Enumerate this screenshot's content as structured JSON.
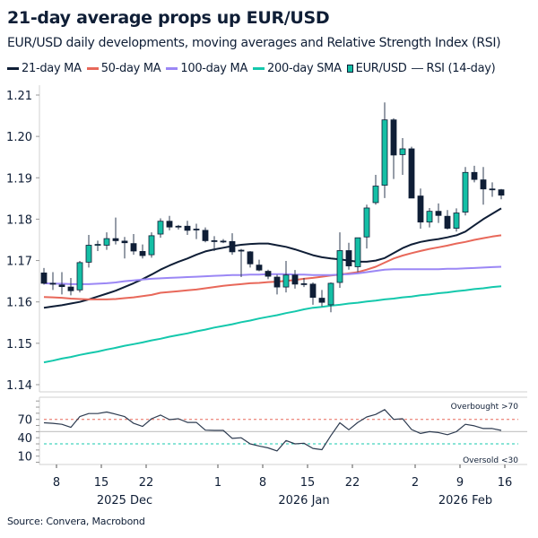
{
  "title": "21-day average props up EUR/USD",
  "subtitle": "EUR/USD daily developments, moving averages and Relative Strength Index (RSI)",
  "source": "Source: Convera, Macrobond",
  "legend": [
    {
      "label": "21-day MA",
      "color": "#0f1e36",
      "kind": "line"
    },
    {
      "label": "50-day MA",
      "color": "#e8685a",
      "kind": "line"
    },
    {
      "label": "100-day MA",
      "color": "#9b87f5",
      "kind": "line"
    },
    {
      "label": "200-day SMA",
      "color": "#14c8ac",
      "kind": "line"
    },
    {
      "label": "EUR/USD",
      "color": "#14bfa5",
      "kind": "candle"
    },
    {
      "label": "RSI (14-day)",
      "color": "#2d3b50",
      "kind": "thin-line"
    }
  ],
  "chart_data": [
    {
      "type": "candlestick",
      "x": [
        "2025-12-05",
        "2025-12-08",
        "2025-12-09",
        "2025-12-10",
        "2025-12-11",
        "2025-12-12",
        "2025-12-15",
        "2025-12-16",
        "2025-12-17",
        "2025-12-18",
        "2025-12-19",
        "2025-12-22",
        "2025-12-23",
        "2025-12-24",
        "2025-12-25",
        "2025-12-26",
        "2025-12-29",
        "2025-12-30",
        "2025-12-31",
        "2026-01-01",
        "2026-01-02",
        "2026-01-05",
        "2026-01-06",
        "2026-01-07",
        "2026-01-08",
        "2026-01-09",
        "2026-01-12",
        "2026-01-13",
        "2026-01-14",
        "2026-01-15",
        "2026-01-16",
        "2026-01-19",
        "2026-01-20",
        "2026-01-21",
        "2026-01-22",
        "2026-01-23",
        "2026-01-26",
        "2026-01-27",
        "2026-01-28",
        "2026-01-29",
        "2026-01-30",
        "2026-02-02",
        "2026-02-03",
        "2026-02-04",
        "2026-02-05",
        "2026-02-06",
        "2026-02-09",
        "2026-02-10",
        "2026-02-11",
        "2026-02-12",
        "2026-02-13",
        "2026-02-16"
      ],
      "ylim": [
        1.138,
        1.213
      ],
      "yticks": [
        "1.14",
        "1.15",
        "1.16",
        "1.17",
        "1.18",
        "1.19",
        "1.20",
        "1.21"
      ],
      "up_color": "#14bfa5",
      "down_color": "#0f1e36",
      "open": [
        1.167,
        1.1645,
        1.1641,
        1.1636,
        1.1629,
        1.1696,
        1.1738,
        1.1737,
        1.1753,
        1.1747,
        1.1741,
        1.1722,
        1.1714,
        1.1764,
        1.1795,
        1.1783,
        1.1783,
        1.1776,
        1.1773,
        1.1748,
        1.1747,
        1.1746,
        1.1725,
        1.1721,
        1.1689,
        1.1674,
        1.166,
        1.1636,
        1.1665,
        1.1644,
        1.1643,
        1.1609,
        1.1593,
        1.1647,
        1.1724,
        1.1685,
        1.1757,
        1.184,
        1.1882,
        1.204,
        1.1956,
        1.197,
        1.1856,
        1.1793,
        1.1819,
        1.1807,
        1.1778,
        1.1817,
        1.1913,
        1.1895,
        1.1873,
        1.1871
      ],
      "high": [
        1.1682,
        1.1672,
        1.1672,
        1.1658,
        1.1699,
        1.1762,
        1.1748,
        1.1768,
        1.1804,
        1.1757,
        1.1764,
        1.1739,
        1.1768,
        1.1802,
        1.1808,
        1.1786,
        1.1796,
        1.1789,
        1.178,
        1.1759,
        1.1752,
        1.1766,
        1.1728,
        1.1723,
        1.1702,
        1.1678,
        1.1666,
        1.1699,
        1.1677,
        1.1658,
        1.1647,
        1.1629,
        1.1647,
        1.1768,
        1.1743,
        1.1755,
        1.1835,
        1.1907,
        1.2082,
        1.2044,
        1.1996,
        1.1975,
        1.1874,
        1.1827,
        1.1838,
        1.1822,
        1.1826,
        1.1926,
        1.1929,
        1.1926,
        1.1889,
        1.1873
      ],
      "low": [
        1.1642,
        1.1629,
        1.1618,
        1.1616,
        1.1623,
        1.1683,
        1.1723,
        1.1726,
        1.1739,
        1.1705,
        1.1714,
        1.1705,
        1.1707,
        1.1755,
        1.1773,
        1.1775,
        1.1762,
        1.1752,
        1.1744,
        1.1723,
        1.1742,
        1.1714,
        1.166,
        1.1683,
        1.1674,
        1.1655,
        1.1618,
        1.1623,
        1.1632,
        1.1636,
        1.1593,
        1.1589,
        1.1575,
        1.1634,
        1.1678,
        1.1672,
        1.1729,
        1.1835,
        1.1851,
        1.1897,
        1.1907,
        1.1851,
        1.1777,
        1.178,
        1.1791,
        1.1775,
        1.177,
        1.1809,
        1.1889,
        1.1835,
        1.1854,
        1.1848
      ],
      "close": [
        1.1645,
        1.1643,
        1.1637,
        1.1627,
        1.1695,
        1.1737,
        1.1739,
        1.1753,
        1.1748,
        1.1743,
        1.1723,
        1.1712,
        1.176,
        1.1795,
        1.1781,
        1.1782,
        1.1773,
        1.1775,
        1.1748,
        1.1747,
        1.1745,
        1.1721,
        1.1724,
        1.1692,
        1.1677,
        1.1662,
        1.1636,
        1.1665,
        1.1643,
        1.1643,
        1.1611,
        1.1599,
        1.1645,
        1.1724,
        1.1687,
        1.1755,
        1.1827,
        1.188,
        1.204,
        1.1955,
        1.197,
        1.1851,
        1.1793,
        1.1819,
        1.1809,
        1.1778,
        1.1815,
        1.1913,
        1.1896,
        1.1873,
        1.1872,
        1.1858
      ],
      "series": [
        {
          "name": "21-day MA",
          "color": "#0f1e36",
          "values": [
            1.1586,
            1.1589,
            1.1592,
            1.1596,
            1.16,
            1.1606,
            1.1613,
            1.162,
            1.1627,
            1.1636,
            1.1645,
            1.1655,
            1.1666,
            1.1678,
            1.1688,
            1.1697,
            1.1705,
            1.1714,
            1.1722,
            1.1727,
            1.1731,
            1.1735,
            1.1738,
            1.174,
            1.1741,
            1.1741,
            1.1737,
            1.1733,
            1.1727,
            1.172,
            1.1713,
            1.1708,
            1.1705,
            1.1703,
            1.17,
            1.1697,
            1.1697,
            1.17,
            1.1706,
            1.1718,
            1.173,
            1.1739,
            1.1745,
            1.1749,
            1.1752,
            1.1756,
            1.1761,
            1.177,
            1.1785,
            1.18,
            1.1813,
            1.1826
          ]
        },
        {
          "name": "50-day MA",
          "color": "#e8685a",
          "values": [
            1.1612,
            1.1611,
            1.161,
            1.1608,
            1.1607,
            1.1606,
            1.1606,
            1.1606,
            1.1607,
            1.1609,
            1.1611,
            1.1614,
            1.1617,
            1.1622,
            1.1624,
            1.1626,
            1.1628,
            1.163,
            1.1633,
            1.1636,
            1.1639,
            1.1641,
            1.1643,
            1.1645,
            1.1646,
            1.1648,
            1.1649,
            1.1651,
            1.1653,
            1.1656,
            1.1658,
            1.1661,
            1.1664,
            1.1666,
            1.1669,
            1.1672,
            1.1678,
            1.1685,
            1.1695,
            1.1705,
            1.1712,
            1.1718,
            1.1723,
            1.1728,
            1.1732,
            1.1736,
            1.1741,
            1.1745,
            1.175,
            1.1754,
            1.1758,
            1.1761
          ]
        },
        {
          "name": "100-day MA",
          "color": "#9b87f5",
          "values": [
            1.1645,
            1.1644,
            1.1644,
            1.1643,
            1.1643,
            1.1643,
            1.1644,
            1.1645,
            1.1647,
            1.165,
            1.1652,
            1.1654,
            1.1656,
            1.1657,
            1.1658,
            1.1659,
            1.166,
            1.1661,
            1.1662,
            1.1663,
            1.1664,
            1.1665,
            1.1665,
            1.1666,
            1.1666,
            1.1667,
            1.1667,
            1.1667,
            1.1666,
            1.1666,
            1.1665,
            1.1665,
            1.1665,
            1.1666,
            1.1667,
            1.1669,
            1.1672,
            1.1675,
            1.1678,
            1.1679,
            1.1679,
            1.1679,
            1.1679,
            1.1679,
            1.1679,
            1.168,
            1.168,
            1.1681,
            1.1682,
            1.1683,
            1.1684,
            1.1685
          ]
        },
        {
          "name": "200-day SMA",
          "color": "#14c8ac",
          "values": [
            1.1454,
            1.1458,
            1.1463,
            1.1467,
            1.1472,
            1.1476,
            1.148,
            1.1485,
            1.1489,
            1.1494,
            1.1498,
            1.1502,
            1.1507,
            1.1511,
            1.1516,
            1.152,
            1.1524,
            1.1529,
            1.1533,
            1.1538,
            1.1542,
            1.1546,
            1.1551,
            1.1555,
            1.156,
            1.1564,
            1.1568,
            1.1573,
            1.1577,
            1.1582,
            1.1586,
            1.1588,
            1.1591,
            1.1593,
            1.1596,
            1.1598,
            1.1601,
            1.1603,
            1.1606,
            1.1608,
            1.1611,
            1.1613,
            1.1616,
            1.1618,
            1.1621,
            1.1623,
            1.1626,
            1.1628,
            1.1631,
            1.1633,
            1.1636,
            1.1638
          ]
        }
      ]
    },
    {
      "type": "line",
      "name": "RSI (14-day)",
      "color": "#2d3b50",
      "ylim": [
        -4,
        106
      ],
      "yticks": [
        "70",
        "40",
        "10"
      ],
      "values": [
        64.5,
        63.5,
        62,
        57,
        74.5,
        79.5,
        79.5,
        82,
        78.5,
        74.5,
        63.5,
        58.5,
        71,
        77,
        69.5,
        71,
        65,
        65,
        52.5,
        52,
        52,
        39,
        40,
        30,
        26.5,
        23.5,
        18.5,
        35.5,
        30,
        31,
        22.5,
        20.5,
        43.5,
        64.5,
        53,
        65,
        74,
        78,
        86,
        70,
        71,
        53.5,
        47,
        50,
        48.5,
        45,
        50,
        62,
        59.5,
        55,
        55,
        52
      ],
      "centerline": 50,
      "overbought": {
        "level": 70,
        "label": "Overbought >70",
        "color": "#e8685a"
      },
      "oversold": {
        "level": 30,
        "label": "Oversold <30",
        "color": "#14c8ac"
      }
    }
  ],
  "xaxis": {
    "ticks": [
      {
        "date": "2025-12-08",
        "label": "8"
      },
      {
        "date": "2025-12-15",
        "label": "15"
      },
      {
        "date": "2025-12-22",
        "label": "22"
      },
      {
        "date": "2026-01-01",
        "label": "1"
      },
      {
        "date": "2026-01-08",
        "label": "8"
      },
      {
        "date": "2026-01-15",
        "label": "15"
      },
      {
        "date": "2026-01-22",
        "label": "22"
      },
      {
        "date": "2026-02-02",
        "label": "2"
      },
      {
        "date": "2026-02-09",
        "label": "9"
      },
      {
        "date": "2026-02-16",
        "label": "16"
      }
    ],
    "months": [
      {
        "label": "2025 Dec",
        "date": "2025-12-18"
      },
      {
        "label": "2026 Jan",
        "date": "2026-01-15"
      },
      {
        "label": "2026 Feb",
        "date": "2026-02-10"
      }
    ]
  }
}
